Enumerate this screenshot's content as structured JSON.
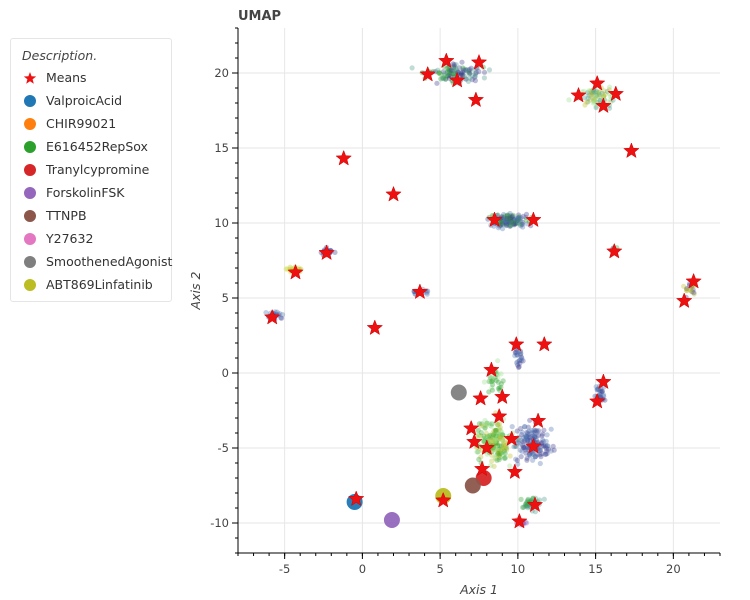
{
  "chart_data": {
    "type": "scatter",
    "title": "UMAP",
    "xlabel": "Axis 1",
    "ylabel": "Axis 2",
    "xlim": [
      -8,
      23
    ],
    "ylim": [
      -12,
      23
    ],
    "xticks": [
      -5,
      0,
      5,
      10,
      15,
      20
    ],
    "yticks": [
      -10,
      -5,
      0,
      5,
      10,
      15,
      20
    ],
    "grid": true,
    "legend": {
      "title": "Description.",
      "position": "left-outside"
    },
    "means": {
      "name": "Means",
      "color": "#ee1111",
      "points": [
        [
          4.2,
          19.9
        ],
        [
          5.4,
          20.8
        ],
        [
          6.1,
          19.5
        ],
        [
          7.5,
          20.7
        ],
        [
          7.3,
          18.2
        ],
        [
          13.9,
          18.5
        ],
        [
          15.1,
          19.3
        ],
        [
          15.5,
          17.8
        ],
        [
          16.3,
          18.6
        ],
        [
          17.3,
          14.8
        ],
        [
          -1.2,
          14.3
        ],
        [
          2.0,
          11.9
        ],
        [
          8.5,
          10.2
        ],
        [
          11.0,
          10.2
        ],
        [
          16.2,
          8.1
        ],
        [
          -2.3,
          8.0
        ],
        [
          -4.3,
          6.7
        ],
        [
          3.7,
          5.4
        ],
        [
          21.3,
          6.1
        ],
        [
          20.7,
          4.8
        ],
        [
          -5.8,
          3.7
        ],
        [
          0.8,
          3.0
        ],
        [
          9.9,
          1.9
        ],
        [
          11.7,
          1.9
        ],
        [
          8.3,
          0.2
        ],
        [
          15.5,
          -0.6
        ],
        [
          7.6,
          -1.7
        ],
        [
          9.0,
          -1.6
        ],
        [
          15.1,
          -1.9
        ],
        [
          8.8,
          -2.9
        ],
        [
          11.3,
          -3.2
        ],
        [
          7.0,
          -3.7
        ],
        [
          7.2,
          -4.6
        ],
        [
          9.6,
          -4.4
        ],
        [
          8.0,
          -5.0
        ],
        [
          11.0,
          -4.9
        ],
        [
          7.7,
          -6.4
        ],
        [
          9.8,
          -6.6
        ],
        [
          5.2,
          -8.5
        ],
        [
          -0.4,
          -8.4
        ],
        [
          11.1,
          -8.8
        ],
        [
          10.1,
          -9.9
        ]
      ]
    },
    "series": [
      {
        "name": "ValproicAcid",
        "color": "#1f77b4",
        "mean": [
          -0.5,
          -8.6
        ]
      },
      {
        "name": "CHIR99021",
        "color": "#ff7f0e",
        "mean": null
      },
      {
        "name": "E616452RepSox",
        "color": "#2ca02c",
        "mean": null
      },
      {
        "name": "Tranylcypromine",
        "color": "#d62728",
        "mean": [
          7.8,
          -7.0
        ]
      },
      {
        "name": "ForskolinFSK",
        "color": "#9467bd",
        "mean": [
          1.9,
          -9.8
        ]
      },
      {
        "name": "TTNPB",
        "color": "#8c564b",
        "mean": [
          7.1,
          -7.5
        ]
      },
      {
        "name": "Y27632",
        "color": "#e377c2",
        "mean": null
      },
      {
        "name": "SmoothenedAgonist",
        "color": "#7f7f7f",
        "mean": [
          6.2,
          -1.3
        ]
      },
      {
        "name": "ABT869Linfatinib",
        "color": "#bcbd22",
        "mean": [
          5.2,
          -8.2
        ]
      }
    ],
    "clusters": [
      {
        "cx": 6.0,
        "cy": 20.0,
        "sx": 1.6,
        "sy": 0.6,
        "n": 110,
        "palette": [
          "#2ca02c",
          "#4c9a8a",
          "#3b3b8f"
        ]
      },
      {
        "cx": 15.2,
        "cy": 18.4,
        "sx": 1.2,
        "sy": 0.6,
        "n": 70,
        "palette": [
          "#98df8a",
          "#bcbd22",
          "#4c9a8a"
        ]
      },
      {
        "cx": 9.5,
        "cy": 10.1,
        "sx": 1.2,
        "sy": 0.4,
        "n": 120,
        "palette": [
          "#2ca02c",
          "#3b3b8f",
          "#4c72b0"
        ]
      },
      {
        "cx": -2.4,
        "cy": 8.1,
        "sx": 0.5,
        "sy": 0.2,
        "n": 20,
        "palette": [
          "#3b3b8f"
        ]
      },
      {
        "cx": -4.4,
        "cy": 6.9,
        "sx": 0.5,
        "sy": 0.2,
        "n": 20,
        "palette": [
          "#bcbd22",
          "#d4e157"
        ]
      },
      {
        "cx": 3.8,
        "cy": 5.4,
        "sx": 0.5,
        "sy": 0.15,
        "n": 20,
        "palette": [
          "#3b3b8f",
          "#4c72b0"
        ]
      },
      {
        "cx": -5.7,
        "cy": 3.8,
        "sx": 0.5,
        "sy": 0.25,
        "n": 25,
        "palette": [
          "#3b3b8f",
          "#4c72b0"
        ]
      },
      {
        "cx": 16.2,
        "cy": 8.2,
        "sx": 0.15,
        "sy": 0.25,
        "n": 8,
        "palette": [
          "#3b3b8f",
          "#2ca02c"
        ]
      },
      {
        "cx": 21.1,
        "cy": 5.6,
        "sx": 0.4,
        "sy": 0.5,
        "n": 20,
        "palette": [
          "#3b3b8f",
          "#bcbd22"
        ]
      },
      {
        "cx": 15.3,
        "cy": -1.4,
        "sx": 0.3,
        "sy": 0.5,
        "n": 35,
        "palette": [
          "#3b3b8f",
          "#4c72b0"
        ]
      },
      {
        "cx": 10.0,
        "cy": 1.2,
        "sx": 0.3,
        "sy": 0.6,
        "n": 25,
        "palette": [
          "#4c72b0",
          "#3b3b8f"
        ]
      },
      {
        "cx": 8.5,
        "cy": -4.6,
        "sx": 1.0,
        "sy": 1.2,
        "n": 200,
        "palette": [
          "#98df8a",
          "#2ca02c",
          "#bcbd22"
        ]
      },
      {
        "cx": 11.0,
        "cy": -4.6,
        "sx": 1.0,
        "sy": 1.1,
        "n": 140,
        "palette": [
          "#3b3b8f",
          "#4c72b0"
        ]
      },
      {
        "cx": 10.8,
        "cy": -8.8,
        "sx": 0.6,
        "sy": 0.5,
        "n": 40,
        "palette": [
          "#2ca02c",
          "#4c9a8a"
        ]
      },
      {
        "cx": 10.2,
        "cy": -10.0,
        "sx": 0.3,
        "sy": 0.2,
        "n": 12,
        "palette": [
          "#9467bd"
        ]
      },
      {
        "cx": 8.5,
        "cy": -0.5,
        "sx": 0.6,
        "sy": 0.8,
        "n": 30,
        "palette": [
          "#2ca02c",
          "#98df8a"
        ]
      }
    ]
  }
}
